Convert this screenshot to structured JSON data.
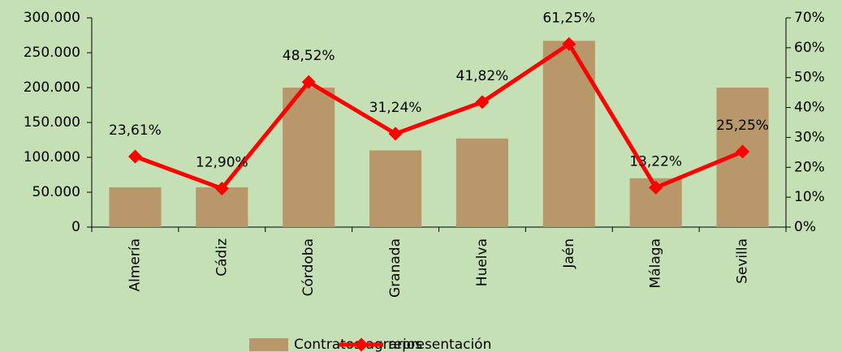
{
  "chart_data": {
    "type": "bar",
    "categories": [
      "Almería",
      "Cádiz",
      "Córdoba",
      "Granada",
      "Huelva",
      "Jaén",
      "Málaga",
      "Sevilla"
    ],
    "series": [
      {
        "name": "Contratos agrarios",
        "color": "#b8976b",
        "values": [
          57000,
          57000,
          200000,
          110000,
          127000,
          267000,
          70000,
          200000
        ]
      },
      {
        "name": "representación",
        "color": "#ff0000",
        "type": "line",
        "axis": "y2",
        "values": [
          23.61,
          12.9,
          48.52,
          31.24,
          41.82,
          61.25,
          13.22,
          25.25
        ],
        "value_labels": [
          "23,61%",
          "12,90%",
          "48,52%",
          "31,24%",
          "41,82%",
          "61,25%",
          "13,22%",
          "25,25%"
        ]
      }
    ],
    "ylim": [
      0,
      300000
    ],
    "yticks": [
      0,
      {
        "value": 50000,
        "label": "50.000"
      },
      {
        "value": 100000,
        "label": "100.000"
      },
      {
        "value": 150000,
        "label": "150.000"
      },
      {
        "value": 200000,
        "label": "200.000"
      },
      {
        "value": 250000,
        "label": "250.000"
      },
      {
        "value": 300000,
        "label": "300.000"
      }
    ],
    "y2lim": [
      0,
      70
    ],
    "y2ticks": [
      {
        "value": 0,
        "label": "0%"
      },
      {
        "value": 10,
        "label": "10%"
      },
      {
        "value": 20,
        "label": "20%"
      },
      {
        "value": 30,
        "label": "30%"
      },
      {
        "value": 40,
        "label": "40%"
      },
      {
        "value": 50,
        "label": "50%"
      },
      {
        "value": 60,
        "label": "60%"
      },
      {
        "value": 70,
        "label": "70%"
      }
    ]
  }
}
